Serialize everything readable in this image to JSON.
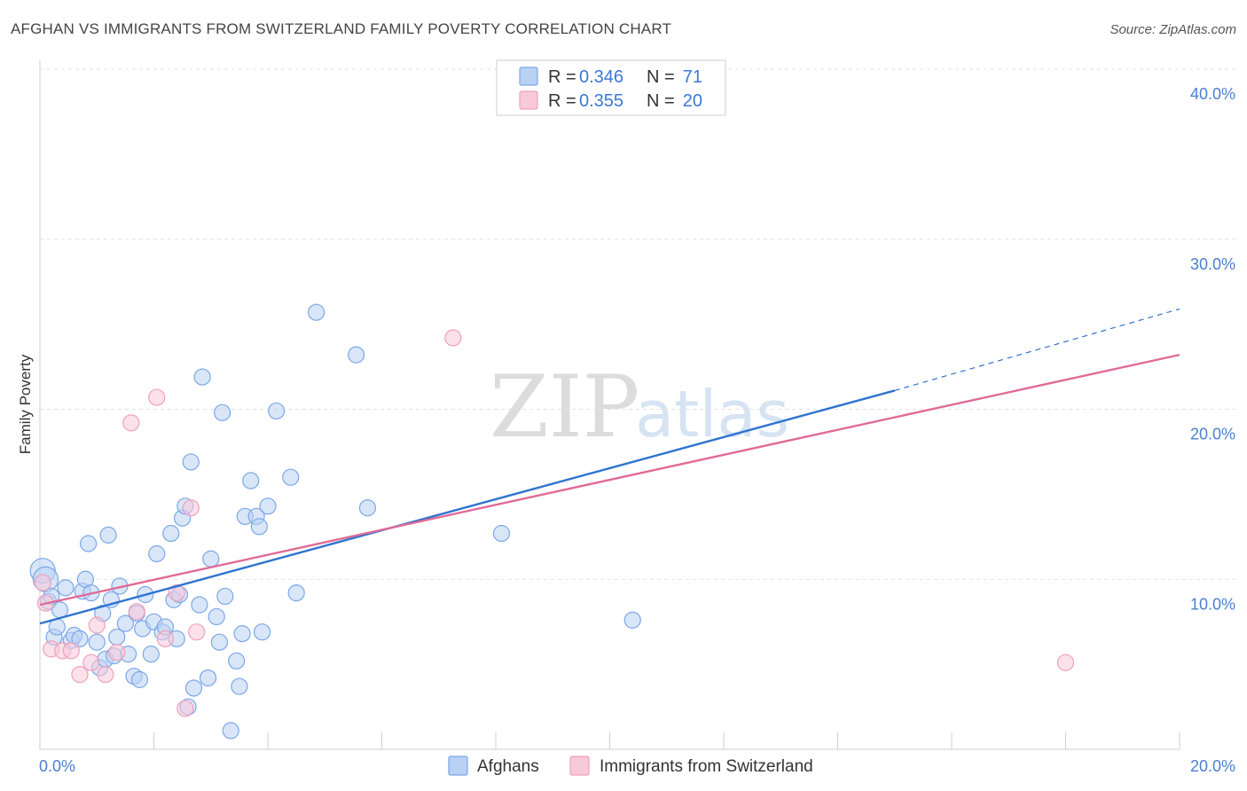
{
  "chart_data": {
    "type": "scatter",
    "title": "AFGHAN VS IMMIGRANTS FROM SWITZERLAND FAMILY POVERTY CORRELATION CHART",
    "source": "Source: ZipAtlas.com",
    "ylabel": "Family Poverty",
    "xlim": [
      0,
      20
    ],
    "ylim": [
      0,
      40
    ],
    "x_tick_labels": [
      "0.0%",
      "20.0%"
    ],
    "y_tick_values": [
      10,
      20,
      30,
      40
    ],
    "y_tick_labels": [
      "10.0%",
      "20.0%",
      "30.0%",
      "40.0%"
    ],
    "watermark": {
      "zip": "ZIP",
      "atlas": "atlas"
    },
    "legend": {
      "rows": [
        {
          "r_label": "R =",
          "r_value": "0.346",
          "n_label": "N =",
          "n_value": "71"
        },
        {
          "r_label": "R =",
          "r_value": "0.355",
          "n_label": "N =",
          "n_value": "20"
        }
      ]
    },
    "series": [
      {
        "name": "Afghans",
        "color": "#7aa7e8",
        "fill": "#b9d1f3",
        "line_color": "#2f74d0",
        "trend": {
          "x0": 0,
          "y0": 7.4,
          "x1": 15.0,
          "y1": 21.1,
          "dash_to_x": 20,
          "dash_to_y": 25.9
        },
        "points": [
          [
            0.05,
            10.5
          ],
          [
            0.1,
            10.0
          ],
          [
            0.15,
            8.7
          ],
          [
            0.2,
            9.0
          ],
          [
            0.25,
            6.6
          ],
          [
            0.3,
            7.2
          ],
          [
            0.35,
            8.2
          ],
          [
            0.45,
            9.5
          ],
          [
            0.55,
            6.4
          ],
          [
            0.6,
            6.7
          ],
          [
            0.7,
            6.5
          ],
          [
            0.75,
            9.3
          ],
          [
            0.8,
            10.0
          ],
          [
            0.85,
            12.1
          ],
          [
            0.9,
            9.2
          ],
          [
            1.0,
            6.3
          ],
          [
            1.05,
            4.8
          ],
          [
            1.1,
            8.0
          ],
          [
            1.15,
            5.3
          ],
          [
            1.2,
            12.6
          ],
          [
            1.25,
            8.8
          ],
          [
            1.35,
            6.6
          ],
          [
            1.4,
            9.6
          ],
          [
            1.5,
            7.4
          ],
          [
            1.55,
            5.6
          ],
          [
            1.65,
            4.3
          ],
          [
            1.7,
            8.0
          ],
          [
            1.75,
            4.1
          ],
          [
            1.8,
            7.1
          ],
          [
            1.85,
            9.1
          ],
          [
            1.95,
            5.6
          ],
          [
            2.0,
            7.5
          ],
          [
            2.05,
            11.5
          ],
          [
            2.15,
            6.9
          ],
          [
            2.2,
            7.2
          ],
          [
            2.3,
            12.7
          ],
          [
            2.35,
            8.8
          ],
          [
            2.45,
            9.1
          ],
          [
            2.5,
            13.6
          ],
          [
            2.55,
            14.3
          ],
          [
            2.6,
            2.5
          ],
          [
            2.65,
            16.9
          ],
          [
            2.7,
            3.6
          ],
          [
            2.8,
            8.5
          ],
          [
            2.85,
            21.9
          ],
          [
            2.95,
            4.2
          ],
          [
            3.0,
            11.2
          ],
          [
            3.1,
            7.8
          ],
          [
            3.15,
            6.3
          ],
          [
            3.2,
            19.8
          ],
          [
            3.25,
            9.0
          ],
          [
            3.35,
            1.1
          ],
          [
            3.45,
            5.2
          ],
          [
            3.5,
            3.7
          ],
          [
            3.55,
            6.8
          ],
          [
            3.6,
            13.7
          ],
          [
            3.7,
            15.8
          ],
          [
            3.8,
            13.7
          ],
          [
            3.85,
            13.1
          ],
          [
            3.9,
            6.9
          ],
          [
            4.0,
            14.3
          ],
          [
            4.15,
            19.9
          ],
          [
            4.4,
            16.0
          ],
          [
            4.5,
            9.2
          ],
          [
            4.85,
            25.7
          ],
          [
            5.55,
            23.2
          ],
          [
            5.75,
            14.2
          ],
          [
            8.1,
            12.7
          ],
          [
            10.4,
            7.6
          ],
          [
            1.3,
            5.5
          ],
          [
            2.4,
            6.5
          ]
        ]
      },
      {
        "name": "Immigrants from Switzerland",
        "color": "#f0a0bc",
        "fill": "#f8c9d8",
        "line_color": "#e06b97",
        "trend": {
          "x0": 0,
          "y0": 8.5,
          "x1": 20,
          "y1": 23.2
        },
        "points": [
          [
            0.05,
            9.8
          ],
          [
            0.1,
            8.6
          ],
          [
            0.2,
            5.9
          ],
          [
            0.4,
            5.8
          ],
          [
            0.55,
            5.8
          ],
          [
            0.7,
            4.4
          ],
          [
            0.9,
            5.1
          ],
          [
            1.0,
            7.3
          ],
          [
            1.15,
            4.4
          ],
          [
            1.35,
            5.7
          ],
          [
            1.6,
            19.2
          ],
          [
            1.7,
            8.1
          ],
          [
            2.05,
            20.7
          ],
          [
            2.2,
            6.5
          ],
          [
            2.4,
            9.2
          ],
          [
            2.55,
            2.4
          ],
          [
            2.65,
            14.2
          ],
          [
            2.75,
            6.9
          ],
          [
            7.25,
            24.2
          ],
          [
            18.0,
            5.1
          ]
        ]
      }
    ]
  }
}
